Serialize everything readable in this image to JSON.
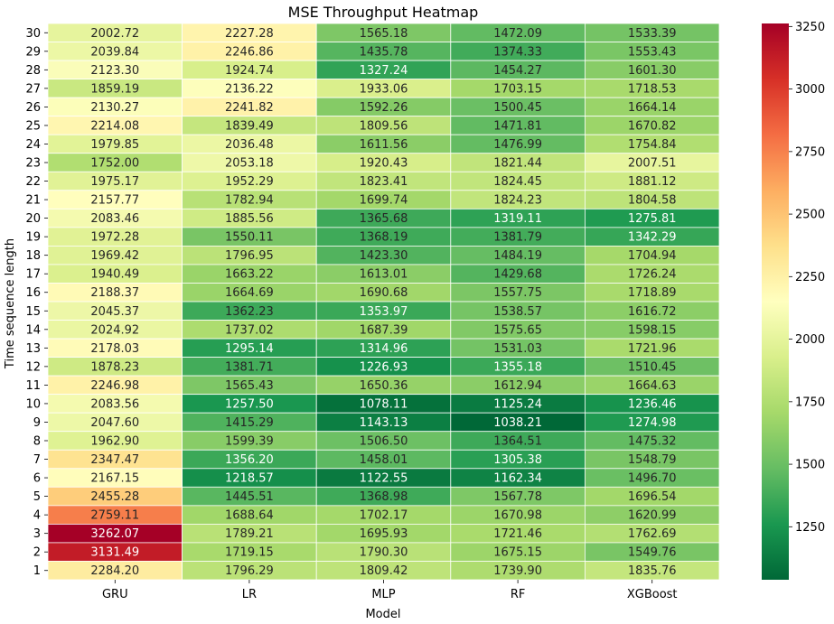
{
  "chart_data": {
    "type": "heatmap",
    "title": "MSE Throughput Heatmap",
    "xlabel": "Model",
    "ylabel": "Time sequence length",
    "x_categories": [
      "GRU",
      "LR",
      "MLP",
      "RF",
      "XGBoost"
    ],
    "y_categories": [
      "30",
      "29",
      "28",
      "27",
      "26",
      "25",
      "24",
      "23",
      "22",
      "21",
      "20",
      "19",
      "18",
      "17",
      "16",
      "15",
      "14",
      "13",
      "12",
      "11",
      "10",
      "9",
      "8",
      "7",
      "6",
      "5",
      "4",
      "3",
      "2",
      "1"
    ],
    "values": [
      [
        2002.72,
        2227.28,
        1565.18,
        1472.09,
        1533.39
      ],
      [
        2039.84,
        2246.86,
        1435.78,
        1374.33,
        1553.43
      ],
      [
        2123.3,
        1924.74,
        1327.24,
        1454.27,
        1601.3
      ],
      [
        1859.19,
        2136.22,
        1933.06,
        1703.15,
        1718.53
      ],
      [
        2130.27,
        2241.82,
        1592.26,
        1500.45,
        1664.14
      ],
      [
        2214.08,
        1839.49,
        1809.56,
        1471.81,
        1670.82
      ],
      [
        1979.85,
        2036.48,
        1611.56,
        1476.99,
        1754.84
      ],
      [
        1752.0,
        2053.18,
        1920.43,
        1821.44,
        2007.51
      ],
      [
        1975.17,
        1952.29,
        1823.41,
        1824.45,
        1881.12
      ],
      [
        2157.77,
        1782.94,
        1699.74,
        1824.23,
        1804.58
      ],
      [
        2083.46,
        1885.56,
        1365.68,
        1319.11,
        1275.81
      ],
      [
        1972.28,
        1550.11,
        1368.19,
        1381.79,
        1342.29
      ],
      [
        1969.42,
        1796.95,
        1423.3,
        1484.19,
        1704.94
      ],
      [
        1940.49,
        1663.22,
        1613.01,
        1429.68,
        1726.24
      ],
      [
        2188.37,
        1664.69,
        1690.68,
        1557.75,
        1718.89
      ],
      [
        2045.37,
        1362.23,
        1353.97,
        1538.57,
        1616.72
      ],
      [
        2024.92,
        1737.02,
        1687.39,
        1575.65,
        1598.15
      ],
      [
        2178.03,
        1295.14,
        1314.96,
        1531.03,
        1721.96
      ],
      [
        1878.23,
        1381.71,
        1226.93,
        1355.18,
        1510.45
      ],
      [
        2246.98,
        1565.43,
        1650.36,
        1612.94,
        1664.63
      ],
      [
        2083.56,
        1257.5,
        1078.11,
        1125.24,
        1236.46
      ],
      [
        2047.6,
        1415.29,
        1143.13,
        1038.21,
        1274.98
      ],
      [
        1962.9,
        1599.39,
        1506.5,
        1364.51,
        1475.32
      ],
      [
        2347.47,
        1356.2,
        1458.01,
        1305.38,
        1548.79
      ],
      [
        2167.15,
        1218.57,
        1122.55,
        1162.34,
        1496.7
      ],
      [
        2455.28,
        1445.51,
        1368.98,
        1567.78,
        1696.54
      ],
      [
        2759.11,
        1688.64,
        1702.17,
        1670.98,
        1620.99
      ],
      [
        3262.07,
        1789.21,
        1695.93,
        1721.46,
        1762.69
      ],
      [
        3131.49,
        1719.15,
        1790.3,
        1675.15,
        1549.76
      ],
      [
        2284.2,
        1796.29,
        1809.42,
        1739.9,
        1835.76
      ]
    ],
    "colormap": "RdYlGn_r",
    "color_range": [
      1038.21,
      3262.07
    ],
    "colorbar_ticks": [
      1250,
      1500,
      1750,
      2000,
      2250,
      2500,
      2750,
      3000,
      3250
    ],
    "annotation_format": "2 decimals",
    "grid": false,
    "cell_border_color": "#ffffff"
  }
}
